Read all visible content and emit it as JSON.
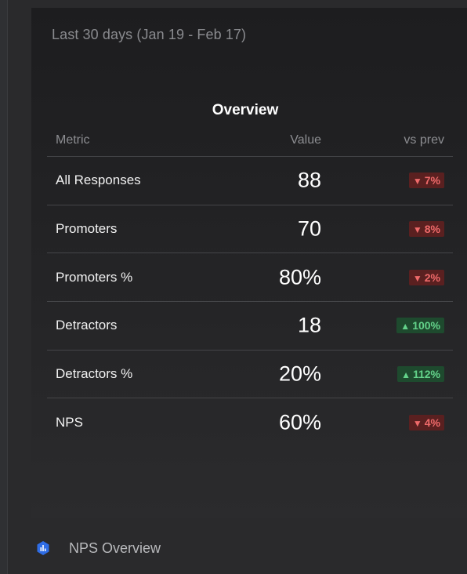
{
  "card": {
    "date_range": "Last 30 days (Jan 19 - Feb 17)"
  },
  "table": {
    "title": "Overview",
    "headers": {
      "metric": "Metric",
      "value": "Value",
      "vs_prev": "vs prev"
    },
    "rows": [
      {
        "metric": "All Responses",
        "value": "88",
        "change": "7%",
        "direction": "down"
      },
      {
        "metric": "Promoters",
        "value": "70",
        "change": "8%",
        "direction": "down"
      },
      {
        "metric": "Promoters %",
        "value": "80%",
        "change": "2%",
        "direction": "down"
      },
      {
        "metric": "Detractors",
        "value": "18",
        "change": "100%",
        "direction": "up"
      },
      {
        "metric": "Detractors %",
        "value": "20%",
        "change": "112%",
        "direction": "up"
      },
      {
        "metric": "NPS",
        "value": "60%",
        "change": "4%",
        "direction": "down"
      }
    ]
  },
  "footer": {
    "title": "NPS Overview",
    "icon": "bar-chart-logo-icon"
  },
  "colors": {
    "down_text": "#ef6a6a",
    "down_bg": "#5a2020",
    "up_text": "#63d28a",
    "up_bg": "#1e4a2e",
    "logo": "#2f6de6"
  },
  "icons": {
    "down": "▼",
    "up": "▲"
  }
}
